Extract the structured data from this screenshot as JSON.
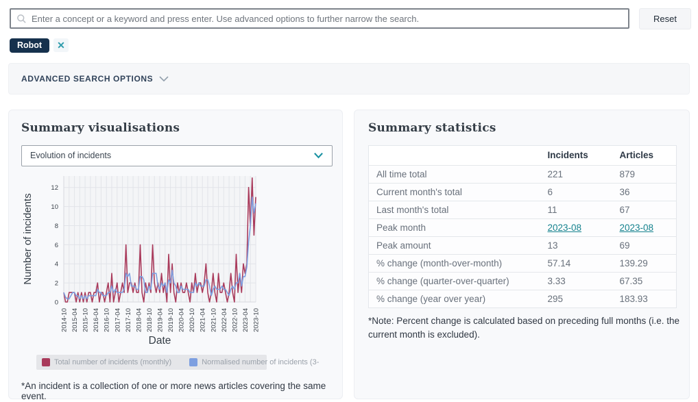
{
  "search": {
    "placeholder": "Enter a concept or a keyword and press enter. Use advanced options to further narrow the search.",
    "reset_label": "Reset"
  },
  "filters": {
    "chip_label": "Robot",
    "remove_label": "✕"
  },
  "advanced": {
    "label": "ADVANCED SEARCH OPTIONS"
  },
  "visualisations": {
    "title": "Summary visualisations",
    "dropdown_value": "Evolution of incidents",
    "footnote": "*An incident is a collection of one or more news articles covering the same event."
  },
  "statistics": {
    "title": "Summary statistics",
    "table": {
      "columns": [
        "Incidents",
        "Articles"
      ],
      "rows": [
        {
          "label": "All time total",
          "incidents": "221",
          "articles": "879"
        },
        {
          "label": "Current month's total",
          "incidents": "6",
          "articles": "36"
        },
        {
          "label": "Last month's total",
          "incidents": "11",
          "articles": "67"
        },
        {
          "label": "Peak month",
          "incidents": "2023-08",
          "articles": "2023-08"
        },
        {
          "label": "Peak amount",
          "incidents": "13",
          "articles": "69"
        },
        {
          "label": "% change (month-over-month)",
          "incidents": "57.14",
          "articles": "139.29"
        },
        {
          "label": "% change (quarter-over-quarter)",
          "incidents": "3.33",
          "articles": "67.35"
        },
        {
          "label": "% change (year over year)",
          "incidents": "295",
          "articles": "183.93"
        }
      ]
    },
    "note": "*Note: Percent change is calculated based on preceding full months (i.e. the current month is excluded)."
  },
  "chart_data": {
    "type": "line",
    "title": "Evolution of incidents",
    "xlabel": "Date",
    "ylabel": "Number of incidents",
    "ylim": [
      0,
      13.2
    ],
    "yticks": [
      0,
      2,
      4,
      6,
      8,
      10,
      12
    ],
    "x_start": "2014-10",
    "x_end": "2023-10",
    "xticks": [
      "2014-10",
      "2015-04",
      "2015-10",
      "2016-04",
      "2016-10",
      "2017-04",
      "2017-10",
      "2018-04",
      "2018-10",
      "2019-04",
      "2019-10",
      "2020-04",
      "2020-10",
      "2021-04",
      "2021-10",
      "2022-04",
      "2022-10",
      "2023-04",
      "2023-10"
    ],
    "grid": true,
    "legend_position": "bottom",
    "plot_bg": "#f4f5f7",
    "grid_color": "#e2e4e9",
    "series": [
      {
        "name": "Total number of incidents (monthly)",
        "color": "#a93a5b",
        "values": [
          1,
          0,
          0,
          1,
          1,
          1,
          1,
          0,
          1,
          0,
          1,
          0,
          1,
          0,
          1,
          1,
          0,
          1,
          1,
          2,
          0,
          1,
          1,
          0,
          1,
          2,
          0,
          3,
          0,
          1,
          2,
          0,
          1,
          2,
          1,
          6,
          1,
          2,
          2,
          1,
          2,
          1,
          1,
          6,
          1,
          0,
          2,
          1,
          2,
          1,
          6,
          2,
          1,
          2,
          1,
          3,
          1,
          2,
          0,
          5,
          1,
          4,
          1,
          0,
          2,
          1,
          2,
          1,
          1,
          2,
          1,
          0,
          2,
          1,
          3,
          1,
          2,
          2,
          1,
          2,
          4,
          1,
          0,
          1,
          3,
          1,
          0,
          3,
          1,
          1,
          2,
          1,
          0,
          1,
          3,
          1,
          0,
          5,
          1,
          3,
          1,
          4,
          3,
          4,
          12,
          8,
          13,
          7,
          11
        ]
      },
      {
        "name": "Normalised number of incidents (3-",
        "color": "#7d9fe0",
        "values": [
          1,
          0.5,
          0.33,
          0.33,
          0.67,
          1,
          1,
          0.67,
          0.67,
          0.33,
          0.67,
          0.33,
          0.67,
          0.33,
          0.67,
          0.67,
          0.67,
          0.67,
          0.67,
          1.33,
          1,
          1,
          0.67,
          0.67,
          0.67,
          1,
          1,
          1.67,
          1,
          1.33,
          1,
          1,
          1,
          1,
          1.33,
          3,
          2.67,
          3,
          1.67,
          1.67,
          1.67,
          1.33,
          1.33,
          2.67,
          2.67,
          2.33,
          1,
          1,
          1.67,
          1.33,
          3,
          3,
          3,
          1.67,
          1.33,
          2,
          1.67,
          2,
          1,
          2.33,
          2,
          3.33,
          2,
          1.67,
          1,
          1,
          1.67,
          1.33,
          1.33,
          1.33,
          1.33,
          1,
          1,
          1,
          2,
          1.67,
          2,
          1.67,
          1.67,
          1.67,
          2.33,
          2.33,
          1.67,
          0.67,
          1.33,
          1.67,
          1.33,
          1.33,
          1.33,
          1.67,
          1.33,
          1.33,
          1,
          0.67,
          1.33,
          1.67,
          1.33,
          2,
          2,
          3,
          1.67,
          2.67,
          2.67,
          3.67,
          6.33,
          8,
          11,
          9.33,
          10.33
        ]
      }
    ]
  }
}
